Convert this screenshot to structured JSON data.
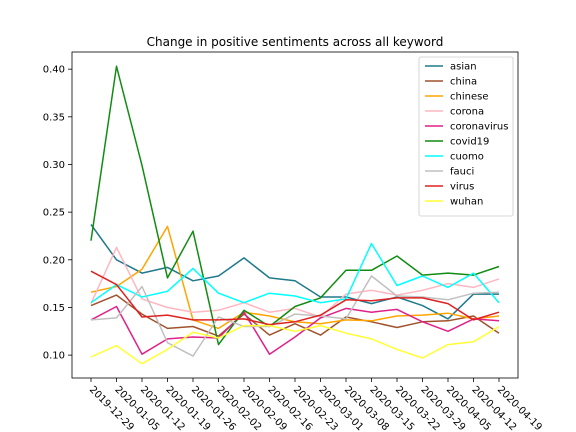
{
  "chart_data": {
    "type": "line",
    "title": "Change in positive sentiments across all keyword",
    "xlabel": "",
    "ylabel": "",
    "ylim": [
      0.076,
      0.418
    ],
    "yticks": [
      "0.10",
      "0.15",
      "0.20",
      "0.25",
      "0.30",
      "0.35",
      "0.40"
    ],
    "ytick_values": [
      0.1,
      0.15,
      0.2,
      0.25,
      0.3,
      0.35,
      0.4
    ],
    "x": [
      "2019-12-29",
      "2020-01-05",
      "2020-01-12",
      "2020-01-19",
      "2020-01-26",
      "2020-02-02",
      "2020-02-09",
      "2020-02-16",
      "2020-02-23",
      "2020-03-01",
      "2020-03-08",
      "2020-03-15",
      "2020-03-22",
      "2020-03-29",
      "2020-04-05",
      "2020-04-12",
      "2020-04-19"
    ],
    "legend_position": "top-right",
    "grid": false,
    "series": [
      {
        "name": "asian",
        "color": "#1f7a8c",
        "values": [
          0.237,
          0.2,
          0.186,
          0.192,
          0.178,
          0.183,
          0.202,
          0.181,
          0.178,
          0.161,
          0.161,
          0.154,
          0.161,
          0.152,
          0.138,
          0.164,
          0.164
        ]
      },
      {
        "name": "china",
        "color": "#a0522d",
        "values": [
          0.152,
          0.163,
          0.143,
          0.128,
          0.13,
          0.12,
          0.143,
          0.121,
          0.133,
          0.121,
          0.14,
          0.135,
          0.129,
          0.135,
          0.136,
          0.141,
          0.123
        ]
      },
      {
        "name": "chinese",
        "color": "#ffa500",
        "values": [
          0.166,
          0.172,
          0.19,
          0.235,
          0.137,
          0.128,
          0.145,
          0.141,
          0.135,
          0.133,
          0.137,
          0.136,
          0.141,
          0.142,
          0.144,
          0.138,
          0.141
        ]
      },
      {
        "name": "corona",
        "color": "#ffb6c1",
        "values": [
          0.154,
          0.213,
          0.159,
          0.15,
          0.145,
          0.147,
          0.155,
          0.145,
          0.149,
          0.14,
          0.164,
          0.168,
          0.163,
          0.168,
          0.175,
          0.171,
          0.18
        ]
      },
      {
        "name": "coronavirus",
        "color": "#e0218a",
        "values": [
          0.137,
          0.151,
          0.101,
          0.117,
          0.119,
          0.118,
          0.145,
          0.101,
          0.119,
          0.139,
          0.149,
          0.145,
          0.148,
          0.135,
          0.125,
          0.138,
          0.136
        ]
      },
      {
        "name": "covid19",
        "color": "#128c12",
        "values": [
          0.22,
          0.403,
          0.299,
          0.181,
          0.23,
          0.111,
          0.147,
          0.13,
          0.151,
          0.16,
          0.189,
          0.189,
          0.204,
          0.184,
          0.186,
          0.184,
          0.193
        ]
      },
      {
        "name": "cuomo",
        "color": "#00ffff",
        "values": [
          0.155,
          0.174,
          0.161,
          0.167,
          0.191,
          0.165,
          0.155,
          0.165,
          0.162,
          0.155,
          0.159,
          0.217,
          0.173,
          0.183,
          0.171,
          0.186,
          0.155
        ]
      },
      {
        "name": "fauci",
        "color": "#c0c0c0",
        "values": [
          0.137,
          0.139,
          0.172,
          0.113,
          0.099,
          0.14,
          0.13,
          0.13,
          0.143,
          0.141,
          0.138,
          0.183,
          0.162,
          0.161,
          0.158,
          0.165,
          0.166
        ]
      },
      {
        "name": "virus",
        "color": "#dd2222",
        "values": [
          0.188,
          0.174,
          0.14,
          0.142,
          0.137,
          0.137,
          0.138,
          0.132,
          0.135,
          0.142,
          0.158,
          0.157,
          0.16,
          0.16,
          0.154,
          0.137,
          0.145
        ]
      },
      {
        "name": "wuhan",
        "color": "#ffff33",
        "values": [
          0.098,
          0.11,
          0.091,
          0.106,
          0.124,
          0.118,
          0.131,
          0.131,
          0.125,
          0.131,
          0.123,
          0.117,
          0.106,
          0.097,
          0.111,
          0.114,
          0.13
        ]
      }
    ]
  }
}
